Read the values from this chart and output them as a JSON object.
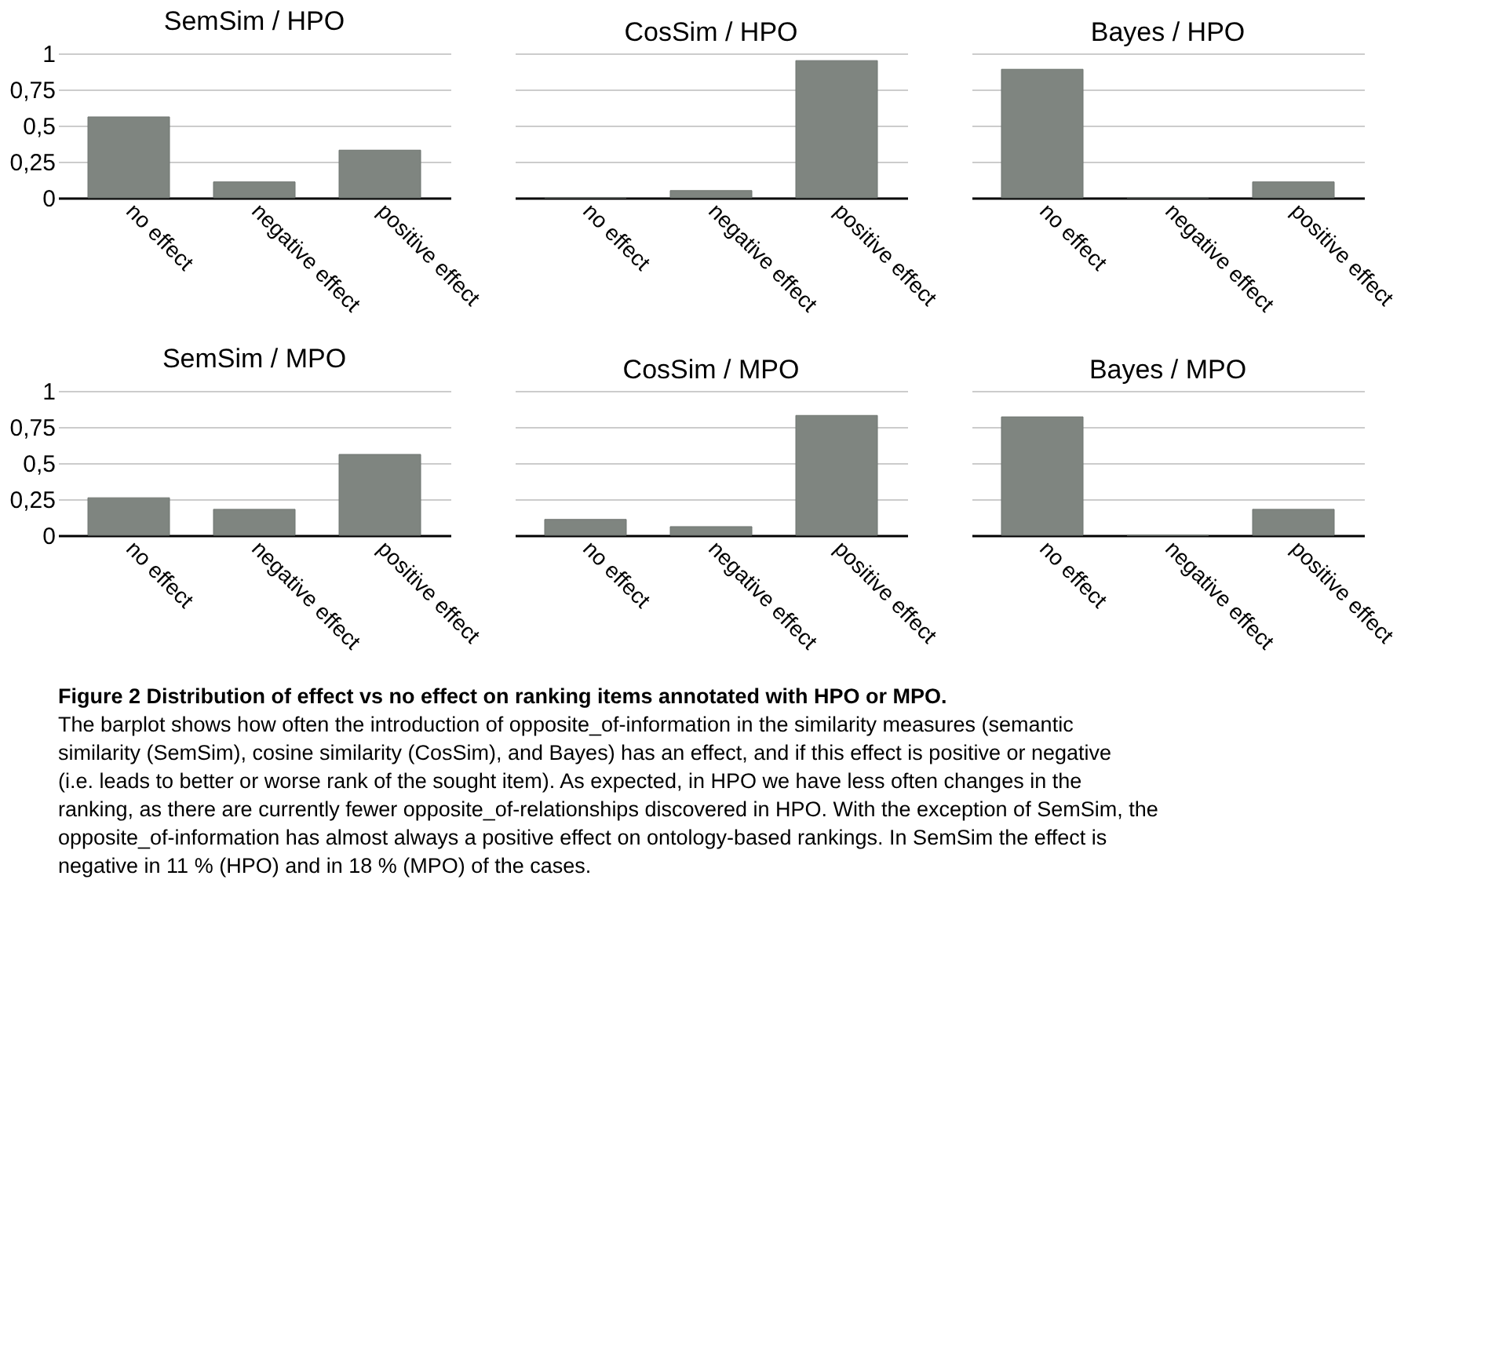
{
  "chart_data": [
    {
      "type": "bar",
      "title": "SemSim / HPO",
      "categories": [
        "no effect",
        "negative effect",
        "positive effect"
      ],
      "values": [
        0.56,
        0.11,
        0.33
      ],
      "color": "#7f8580",
      "ylim": [
        0,
        1
      ],
      "yticks": [
        0,
        {
          "value": 0.25,
          "label": "0,25"
        },
        {
          "value": 0.5,
          "label": "0,5"
        },
        {
          "value": 0.75,
          "label": "0,75"
        },
        1
      ],
      "grid": "y"
    },
    {
      "type": "bar",
      "title": "CosSim / HPO",
      "categories": [
        "no effect",
        "negative effect",
        "positive effect"
      ],
      "values": [
        0,
        0.05,
        0.95
      ],
      "color": "#7f8580",
      "ylim": [
        0,
        1
      ],
      "yticks": [
        {
          "value": 0,
          "label": null
        },
        {
          "value": 0.25,
          "label": null
        },
        {
          "value": 0.5,
          "label": null
        },
        {
          "value": 0.75,
          "label": null
        },
        {
          "value": 1,
          "label": null
        }
      ],
      "grid": "y",
      "tick_labels": "x"
    },
    {
      "type": "bar",
      "title": "Bayes / HPO",
      "categories": [
        "no effect",
        "negative effect",
        "positive effect"
      ],
      "values": [
        0.89,
        0,
        0.11
      ],
      "color": "#7f8580",
      "ylim": [
        0,
        1
      ],
      "yticks": [
        {
          "value": 0,
          "label": null
        },
        {
          "value": 0.25,
          "label": null
        },
        {
          "value": 0.5,
          "label": null
        },
        {
          "value": 0.75,
          "label": null
        },
        {
          "value": 1,
          "label": null
        }
      ],
      "grid": "y",
      "tick_labels": "x"
    },
    {
      "type": "bar",
      "title": "SemSim / MPO",
      "categories": [
        "no effect",
        "negative effect",
        "positive effect"
      ],
      "values": [
        0.26,
        0.18,
        0.56
      ],
      "color": "#7f8580",
      "ylim": [
        0,
        1
      ],
      "yticks": [
        0,
        {
          "value": 0.25,
          "label": "0,25"
        },
        {
          "value": 0.5,
          "label": "0,5"
        },
        {
          "value": 0.75,
          "label": "0,75"
        },
        1
      ],
      "grid": "y"
    },
    {
      "type": "bar",
      "title": "CosSim / MPO",
      "categories": [
        "no effect",
        "negative effect",
        "positive effect"
      ],
      "values": [
        0.11,
        0.06,
        0.83
      ],
      "color": "#7f8580",
      "ylim": [
        0,
        1
      ],
      "yticks": [
        {
          "value": 0,
          "label": null
        },
        {
          "value": 0.25,
          "label": null
        },
        {
          "value": 0.5,
          "label": null
        },
        {
          "value": 0.75,
          "label": null
        },
        {
          "value": 1,
          "label": null
        }
      ],
      "grid": "y",
      "tick_labels": "x"
    },
    {
      "type": "bar",
      "title": "Bayes / MPO",
      "categories": [
        "no effect",
        "negative effect",
        "positive effect"
      ],
      "values": [
        0.82,
        0,
        0.18
      ],
      "color": "#7f8580",
      "ylim": [
        0,
        1
      ],
      "yticks": [
        {
          "value": 0,
          "label": null
        },
        {
          "value": 0.25,
          "label": null
        },
        {
          "value": 0.5,
          "label": null
        },
        {
          "value": 0.75,
          "label": null
        },
        {
          "value": 1,
          "label": null
        }
      ],
      "grid": "y",
      "tick_labels": "x"
    },
    {
      "type": "other",
      "annotations": [
        "Figure 2 Distribution of effect vs no effect on ranking items annotated with HPO or MPO.",
        "The barplot shows how often the introduction of opposite_of-information in the similarity measures (semantic similarity (SemSim), cosine similarity (CosSim), and Bayes) has an effect, and if this effect is positive or negative (i.e. leads to better or worse rank of the sought item). As expected, in HPO we have less often changes in the ranking, as there are currently fewer opposite_of-relationships discovered in HPO. With the exception of SemSim, the opposite_of-information has almost always a positive effect on ontology-based rankings. In SemSim the effect is negative in 11 % (HPO) and in 18 % (MPO) of the cases."
      ]
    }
  ]
}
